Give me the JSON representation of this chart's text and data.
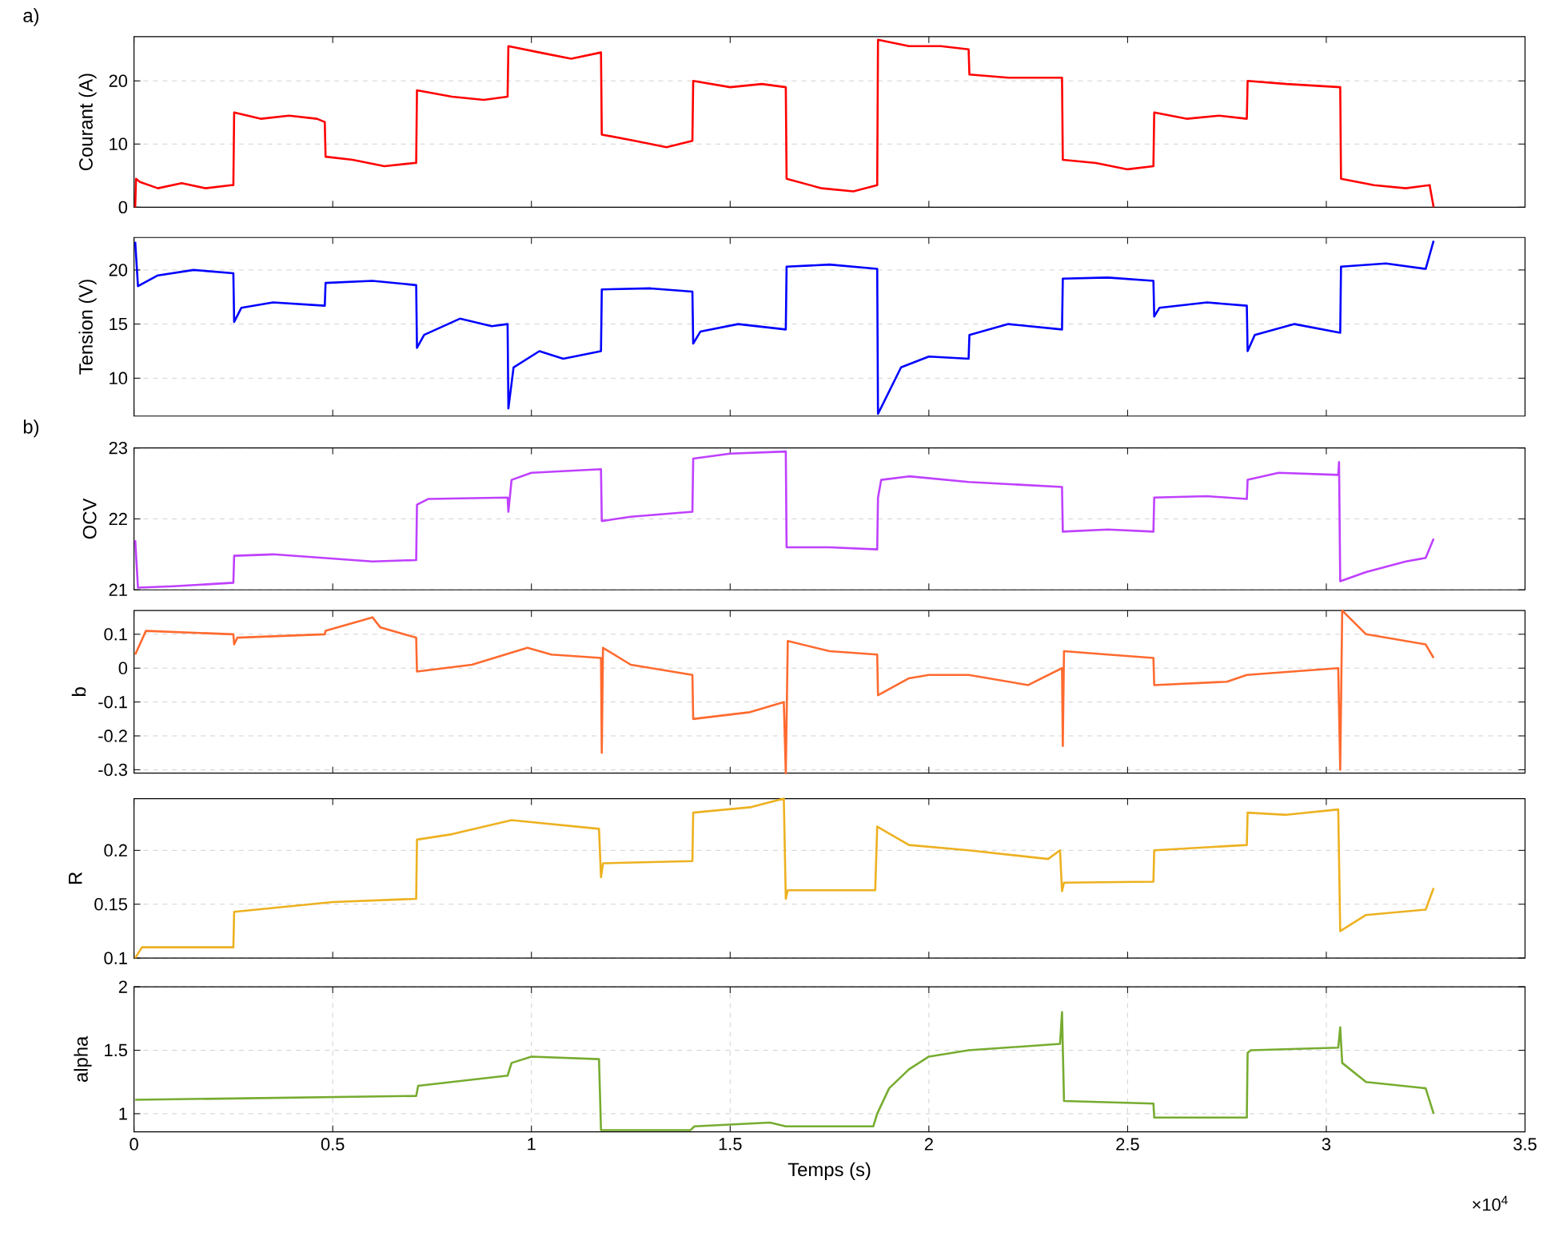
{
  "chart_data": [
    {
      "type": "line",
      "ylabel": "Courant (A)",
      "annotations": [
        "a)"
      ],
      "color": "#ff0000",
      "xlim": [
        0,
        3.5
      ],
      "xticks": [
        0,
        0.5,
        1,
        1.5,
        2,
        2.5,
        3,
        3.5
      ],
      "ylim": [
        0,
        27
      ],
      "yticks": [
        0,
        10,
        20
      ],
      "grid": "y",
      "tick_labels": "y",
      "x": [
        0.003,
        0.005,
        0.015,
        0.06,
        0.12,
        0.18,
        0.245,
        0.25,
        0.252,
        0.32,
        0.39,
        0.46,
        0.48,
        0.482,
        0.55,
        0.63,
        0.705,
        0.71,
        0.712,
        0.8,
        0.88,
        0.94,
        0.942,
        1.02,
        1.1,
        1.175,
        1.177,
        1.26,
        1.34,
        1.405,
        1.407,
        1.5,
        1.58,
        1.64,
        1.642,
        1.73,
        1.81,
        1.87,
        1.872,
        1.95,
        2.03,
        2.1,
        2.102,
        2.2,
        2.335,
        2.337,
        2.42,
        2.5,
        2.565,
        2.567,
        2.65,
        2.73,
        2.8,
        2.802,
        2.9,
        3.035,
        3.037,
        3.12,
        3.2,
        3.26,
        3.27
      ],
      "values": [
        0,
        4.5,
        4,
        3,
        3.8,
        3,
        3.5,
        3.5,
        15,
        14,
        14.5,
        14,
        13.5,
        8,
        7.5,
        6.5,
        7,
        7,
        18.5,
        17.5,
        17,
        17.5,
        25.5,
        24.5,
        23.5,
        24.5,
        11.5,
        10.5,
        9.5,
        10.5,
        20,
        19,
        19.5,
        19,
        4.5,
        3,
        2.5,
        3.5,
        26.5,
        25.5,
        25.5,
        25,
        21,
        20.5,
        20.5,
        7.5,
        7,
        6,
        6.5,
        15,
        14,
        14.5,
        14,
        20,
        19.5,
        19,
        4.5,
        3.5,
        3,
        3.5,
        0
      ]
    },
    {
      "type": "line",
      "ylabel": "Tension (V)",
      "color": "#0000ff",
      "xlim": [
        0,
        3.5
      ],
      "xticks": [
        0,
        0.5,
        1,
        1.5,
        2,
        2.5,
        3,
        3.5
      ],
      "ylim": [
        6.5,
        23
      ],
      "yticks": [
        10,
        15,
        20
      ],
      "grid": "y",
      "tick_labels": "y",
      "x": [
        0.003,
        0.01,
        0.06,
        0.15,
        0.25,
        0.252,
        0.27,
        0.35,
        0.48,
        0.482,
        0.6,
        0.71,
        0.712,
        0.73,
        0.82,
        0.9,
        0.94,
        0.942,
        0.955,
        1.02,
        1.08,
        1.175,
        1.177,
        1.3,
        1.405,
        1.407,
        1.425,
        1.52,
        1.64,
        1.642,
        1.75,
        1.87,
        1.872,
        1.93,
        2.0,
        2.1,
        2.102,
        2.2,
        2.335,
        2.337,
        2.45,
        2.565,
        2.567,
        2.58,
        2.7,
        2.8,
        2.802,
        2.82,
        2.92,
        3.035,
        3.037,
        3.15,
        3.25,
        3.27
      ],
      "values": [
        22.6,
        18.5,
        19.5,
        20,
        19.7,
        15.2,
        16.5,
        17,
        16.7,
        18.8,
        19,
        18.6,
        12.8,
        14,
        15.5,
        14.8,
        15,
        7.2,
        11,
        12.5,
        11.8,
        12.5,
        18.2,
        18.3,
        18,
        13.2,
        14.3,
        15,
        14.5,
        20.3,
        20.5,
        20.1,
        6.7,
        11,
        12,
        11.8,
        14,
        15,
        14.5,
        19.2,
        19.3,
        19,
        15.7,
        16.5,
        17,
        16.7,
        12.5,
        14,
        15,
        14.2,
        20.3,
        20.6,
        20.1,
        22.7
      ]
    },
    {
      "type": "line",
      "ylabel": "OCV",
      "annotations": [
        "b)"
      ],
      "color": "#bf40ff",
      "xlim": [
        0,
        3.5
      ],
      "xticks": [
        0,
        0.5,
        1,
        1.5,
        2,
        2.5,
        3,
        3.5
      ],
      "ylim": [
        21,
        23
      ],
      "yticks": [
        21,
        22,
        23
      ],
      "grid": "y",
      "tick_labels": "y",
      "x": [
        0.003,
        0.01,
        0.1,
        0.25,
        0.252,
        0.35,
        0.6,
        0.71,
        0.712,
        0.74,
        0.94,
        0.942,
        0.95,
        1.0,
        1.175,
        1.177,
        1.25,
        1.405,
        1.407,
        1.5,
        1.64,
        1.642,
        1.75,
        1.87,
        1.872,
        1.88,
        1.95,
        2.1,
        2.335,
        2.337,
        2.45,
        2.565,
        2.567,
        2.7,
        2.8,
        2.802,
        2.88,
        3.03,
        3.032,
        3.035,
        3.1,
        3.2,
        3.25,
        3.27
      ],
      "values": [
        21.7,
        21.03,
        21.05,
        21.1,
        21.48,
        21.5,
        21.4,
        21.42,
        22.2,
        22.28,
        22.3,
        22.1,
        22.55,
        22.65,
        22.7,
        21.97,
        22.03,
        22.1,
        22.85,
        22.92,
        22.95,
        21.6,
        21.6,
        21.57,
        22.3,
        22.55,
        22.6,
        22.52,
        22.45,
        21.82,
        21.85,
        21.82,
        22.3,
        22.32,
        22.28,
        22.55,
        22.65,
        22.62,
        22.8,
        21.12,
        21.25,
        21.4,
        21.45,
        21.72
      ]
    },
    {
      "type": "line",
      "ylabel": "b",
      "color": "#ff6a2f",
      "xlim": [
        0,
        3.5
      ],
      "xticks": [
        0,
        0.5,
        1,
        1.5,
        2,
        2.5,
        3,
        3.5
      ],
      "ylim": [
        -0.31,
        0.17
      ],
      "yticks": [
        -0.3,
        -0.2,
        -0.1,
        0,
        0.1
      ],
      "grid": "y",
      "tick_labels": "y",
      "x": [
        0.003,
        0.03,
        0.25,
        0.252,
        0.26,
        0.48,
        0.482,
        0.6,
        0.62,
        0.71,
        0.712,
        0.85,
        0.99,
        1.05,
        1.175,
        1.177,
        1.18,
        1.25,
        1.405,
        1.407,
        1.55,
        1.635,
        1.64,
        1.645,
        1.75,
        1.87,
        1.872,
        1.95,
        2.0,
        2.1,
        2.25,
        2.335,
        2.337,
        2.34,
        2.45,
        2.565,
        2.567,
        2.75,
        2.8,
        3.03,
        3.035,
        3.04,
        3.1,
        3.25,
        3.27
      ],
      "values": [
        0.04,
        0.11,
        0.1,
        0.07,
        0.09,
        0.1,
        0.11,
        0.15,
        0.12,
        0.09,
        -0.01,
        0.01,
        0.06,
        0.04,
        0.03,
        -0.25,
        0.06,
        0.01,
        -0.02,
        -0.15,
        -0.13,
        -0.1,
        -0.31,
        0.08,
        0.05,
        0.04,
        -0.08,
        -0.03,
        -0.02,
        -0.02,
        -0.05,
        0,
        -0.23,
        0.05,
        0.04,
        0.03,
        -0.05,
        -0.04,
        -0.02,
        0,
        -0.3,
        0.17,
        0.1,
        0.07,
        0.03
      ]
    },
    {
      "type": "line",
      "ylabel": "R",
      "color": "#edb120",
      "xlim": [
        0,
        3.5
      ],
      "xticks": [
        0,
        0.5,
        1,
        1.5,
        2,
        2.5,
        3,
        3.5
      ],
      "ylim": [
        0.1,
        0.248
      ],
      "yticks": [
        0.1,
        0.15,
        0.2
      ],
      "grid": "y",
      "tick_labels": "y",
      "x": [
        0.003,
        0.02,
        0.25,
        0.252,
        0.5,
        0.71,
        0.712,
        0.8,
        0.95,
        1.17,
        1.175,
        1.18,
        1.405,
        1.407,
        1.55,
        1.635,
        1.64,
        1.645,
        1.865,
        1.87,
        1.95,
        2.1,
        2.3,
        2.33,
        2.335,
        2.34,
        2.565,
        2.567,
        2.8,
        2.802,
        2.9,
        3.03,
        3.035,
        3.1,
        3.25,
        3.27
      ],
      "values": [
        0.1,
        0.11,
        0.11,
        0.143,
        0.152,
        0.155,
        0.21,
        0.215,
        0.228,
        0.22,
        0.175,
        0.188,
        0.19,
        0.235,
        0.24,
        0.248,
        0.155,
        0.163,
        0.163,
        0.222,
        0.205,
        0.2,
        0.192,
        0.2,
        0.162,
        0.17,
        0.171,
        0.2,
        0.205,
        0.235,
        0.233,
        0.238,
        0.125,
        0.14,
        0.145,
        0.165
      ]
    },
    {
      "type": "line",
      "ylabel": "alpha",
      "xlabel": "Temps (s)",
      "annotations": [
        "×10$^{4}$"
      ],
      "color": "#77ac30",
      "xlim": [
        0,
        3.5
      ],
      "ylim": [
        0.857,
        2
      ],
      "yticks": [
        1,
        1.5,
        2
      ],
      "grid": true,
      "xticks": [
        0,
        0.5,
        1,
        1.5,
        2,
        2.5,
        3,
        3.5
      ],
      "x": [
        0.003,
        0.25,
        0.71,
        0.715,
        0.94,
        0.95,
        1.0,
        1.17,
        1.175,
        1.4,
        1.41,
        1.6,
        1.64,
        1.86,
        1.87,
        1.9,
        1.95,
        2.0,
        2.1,
        2.33,
        2.335,
        2.34,
        2.565,
        2.567,
        2.8,
        2.802,
        2.81,
        3.03,
        3.035,
        3.04,
        3.1,
        3.25,
        3.27
      ],
      "values": [
        1.11,
        1.12,
        1.14,
        1.22,
        1.3,
        1.4,
        1.45,
        1.43,
        0.87,
        0.87,
        0.9,
        0.93,
        0.9,
        0.9,
        1.0,
        1.2,
        1.35,
        1.45,
        1.5,
        1.55,
        1.8,
        1.1,
        1.08,
        0.97,
        0.97,
        1.48,
        1.5,
        1.52,
        1.68,
        1.4,
        1.25,
        1.2,
        1.0
      ]
    }
  ]
}
